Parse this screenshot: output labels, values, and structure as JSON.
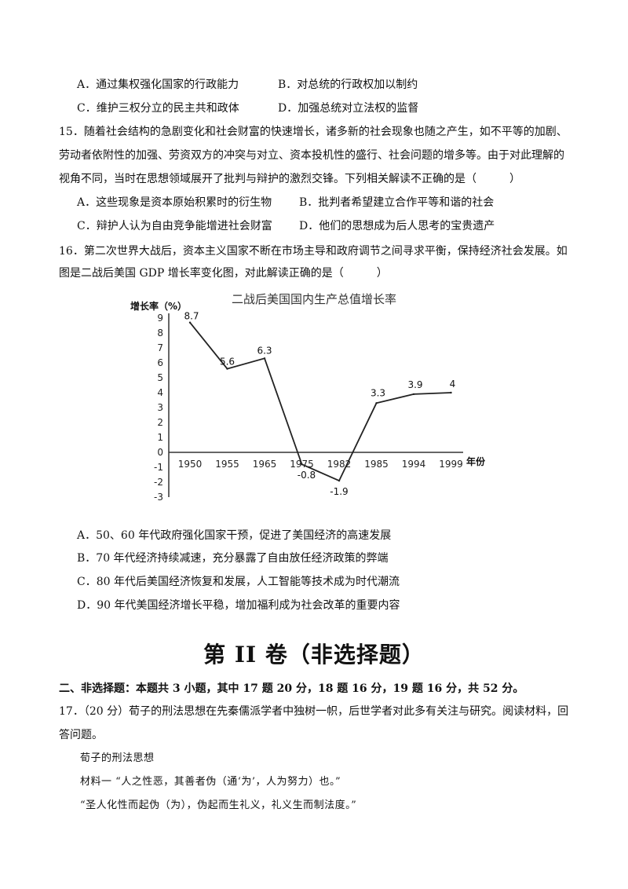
{
  "q14_options": {
    "A": "A．通过集权强化国家的行政能力",
    "B": "B．对总统的行政权加以制约",
    "C": "C．维护三权分立的民主共和政体",
    "D": "D．加强总统对立法权的监督"
  },
  "q15": {
    "line1": "15．随着社会结构的急剧变化和社会财富的快速增长，诸多新的社会现象也随之产生，如不平等的加剧、",
    "line2": "劳动者依附性的加强、劳资双方的冲突与对立、资本投机性的盛行、社会问题的增多等。由于对此理解的",
    "line3": "视角不同，当时在思想领域展开了批判与辩护的激烈交锋。下列相关解读不正确的是（　　　）",
    "A": "A．这些现象是资本原始积累时的衍生物",
    "B": "B．批判者希望建立合作平等和谐的社会",
    "C": "C．辩护人认为自由竞争能增进社会财富",
    "D": "D．他们的思想成为后人思考的宝贵遗产"
  },
  "q16": {
    "line1": "16．第二次世界大战后，资本主义国家不断在市场主导和政府调节之间寻求平衡，保持经济社会发展。如",
    "line2": "图是二战后美国 GDP 增长率变化图，对此解读正确的是（　　　）",
    "A": "A．50、60 年代政府强化国家干预，促进了美国经济的高速发展",
    "B": "B．70 年代经济持续减速，充分暴露了自由放任经济政策的弊端",
    "C": "C．80 年代后美国经济恢复和发展，人工智能等技术成为时代潮流",
    "D": "D．90 年代美国经济增长平稳，增加福利成为社会改革的重要内容"
  },
  "chart_data": {
    "type": "line",
    "title": "二战后美国国内生产总值增长率",
    "ylabel": "增长率（%）",
    "xlabel": "年份",
    "categories": [
      "1950",
      "1955",
      "1965",
      "1975",
      "1982",
      "1985",
      "1994",
      "1999"
    ],
    "values": [
      8.7,
      5.6,
      6.3,
      -0.8,
      -1.9,
      3.3,
      3.9,
      4
    ],
    "data_labels": [
      "8.7",
      "5.6",
      "6.3",
      "-0.8",
      "-1.9",
      "3.3",
      "3.9",
      "4"
    ],
    "yticks": [
      "9",
      "8",
      "7",
      "6",
      "5",
      "4",
      "3",
      "2",
      "1",
      "0",
      "-1",
      "-2",
      "-3"
    ],
    "ylim": [
      -3,
      9
    ],
    "grid": false,
    "color": "#222222"
  },
  "section": {
    "title": "第 II 卷（非选择题）",
    "instruction": "二、非选择题：本题共 3 小题，其中 17 题 20 分，18 题 16 分，19 题 16 分，共 52 分。"
  },
  "q17": {
    "line1": "17．（20 分）荀子的刑法思想在先秦儒派学者中独树一帜，后世学者对此多有关注与研究。阅读材料，回",
    "line2": "答问题。",
    "sub_title": "荀子的刑法思想",
    "m1": "材料一 “人之性恶，其善者伪（通‘为’，人为努力）也。”",
    "m2": "“圣人化性而起伪（为），伪起而生礼义，礼义生而制法度。”"
  }
}
